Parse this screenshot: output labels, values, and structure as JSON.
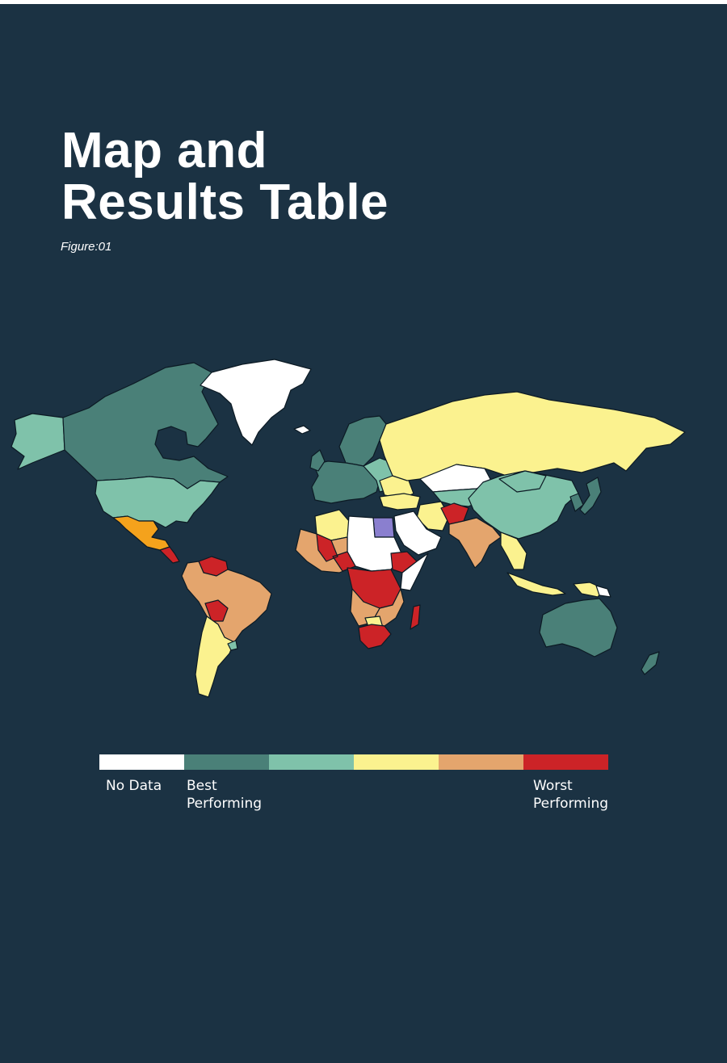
{
  "title": {
    "line1": "Map and",
    "line2": "Results Table"
  },
  "figure_label": "Figure:01",
  "colors": {
    "background": "#1b3243",
    "no_data": "#ffffff",
    "best": "#4a8078",
    "good": "#7fc2aa",
    "mid": "#fbf28f",
    "poor": "#e4a56d",
    "worst": "#cc2327",
    "orange": "#f4a21c",
    "purple": "#8a7fcf"
  },
  "legend": {
    "swatches": [
      "#ffffff",
      "#4a8078",
      "#7fc2aa",
      "#fbf28f",
      "#e4a56d",
      "#cc2327"
    ],
    "no_data": "No Data",
    "best_line1": "Best",
    "best_line2": "Performing",
    "worst_line1": "Worst",
    "worst_line2": "Performing"
  }
}
